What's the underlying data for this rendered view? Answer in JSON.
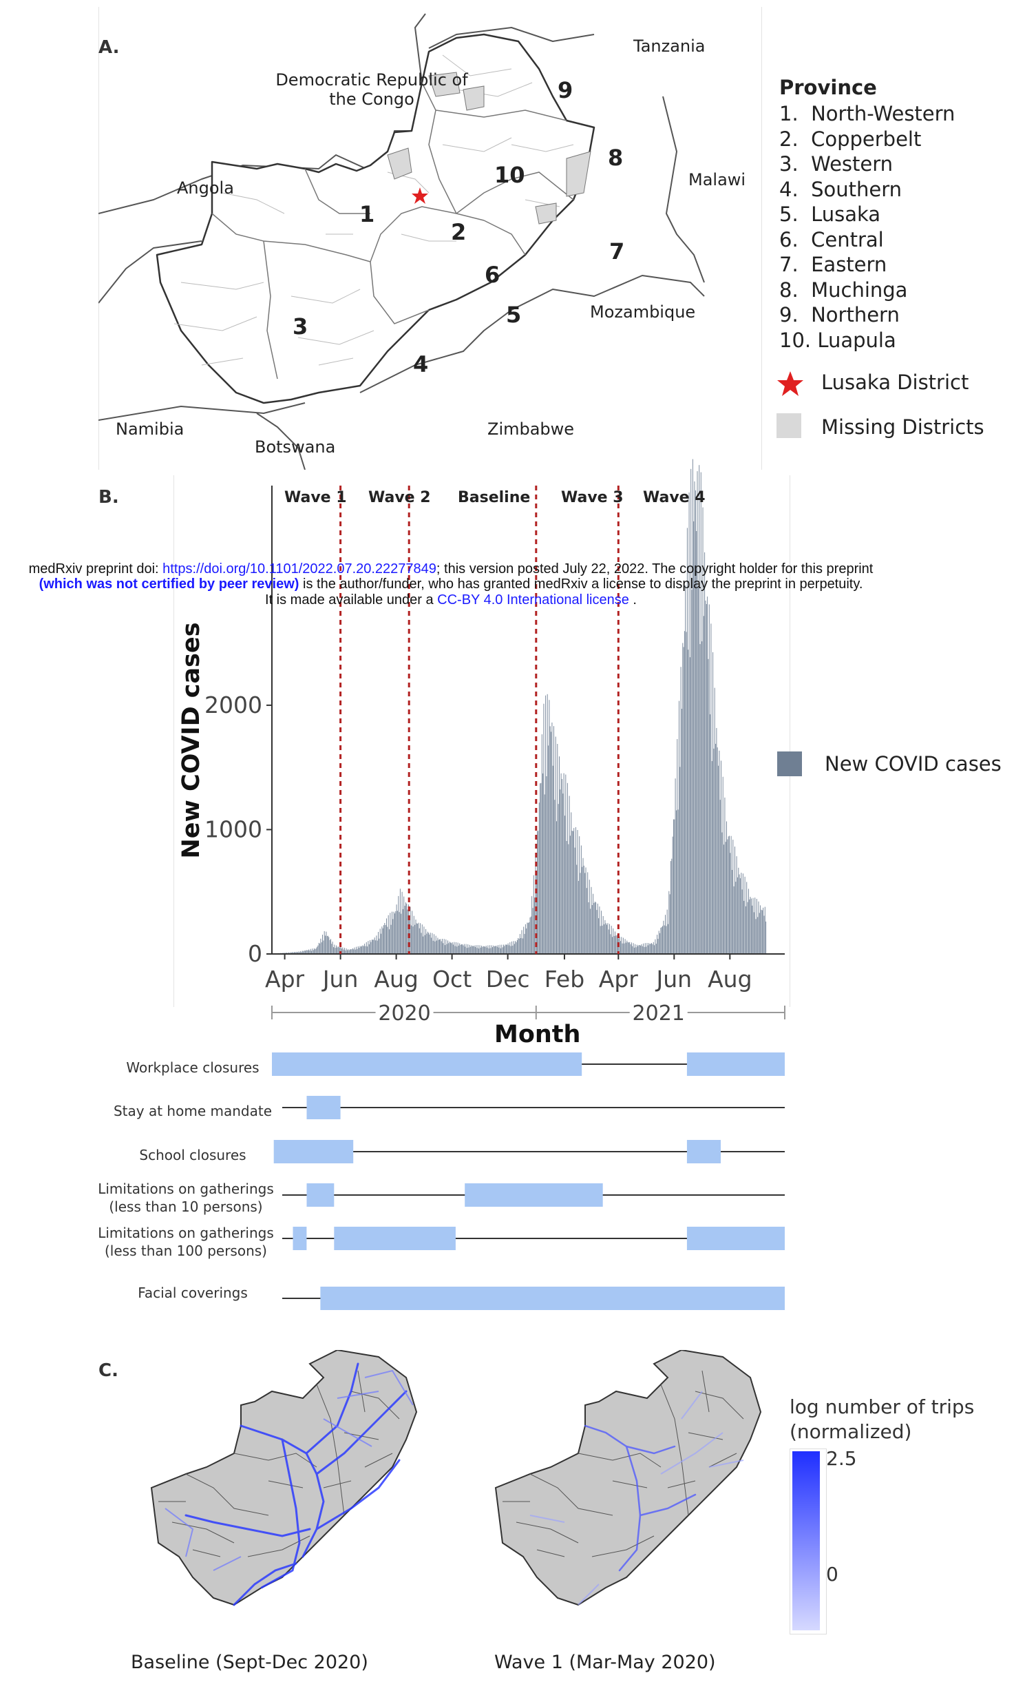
{
  "preprint_header": {
    "line1_prefix": "medRxiv preprint doi: ",
    "doi_link": "https://doi.org/10.1101/2022.07.20.22277849",
    "line1_suffix": "; this version posted July 22, 2022. The copyright holder for this preprint",
    "line2_bold": "(which was not certified by peer review)",
    "line2_rest": " is the author/funder, who has granted medRxiv a license to display the preprint in perpetuity.",
    "line3_prefix": "It is made available under a ",
    "license_link": "CC-BY 4.0 International license",
    "line3_suffix": " ."
  },
  "panel_a": {
    "letter": "A.",
    "countries": {
      "drc": "Democratic Republic of the Congo",
      "tanzania": "Tanzania",
      "angola": "Angola",
      "malawi": "Malawi",
      "mozambique": "Mozambique",
      "namibia": "Namibia",
      "botswana": "Botswana",
      "zimbabwe": "Zimbabwe"
    },
    "province_numbers": [
      "1",
      "2",
      "3",
      "4",
      "5",
      "6",
      "7",
      "8",
      "9",
      "10"
    ],
    "legend": {
      "title": "Province",
      "items": [
        "1.  North-Western",
        "2.  Copperbelt",
        "3.  Western",
        "4.  Southern",
        "5.  Lusaka",
        "6.  Central",
        "7.  Eastern",
        "8.  Muchinga",
        "9.  Northern",
        "10. Luapula"
      ],
      "lusaka_district": "Lusaka District",
      "missing_districts": "Missing Districts"
    },
    "colors": {
      "missing": "#d9d9d9",
      "star": "#e02020",
      "border": "#555555"
    }
  },
  "panel_b": {
    "letter": "B.",
    "wave_labels": [
      "Wave 1",
      "Wave 2",
      "Baseline",
      "Wave 3",
      "Wave 4"
    ],
    "y_axis_title": "New COVID cases",
    "x_axis_title": "Month",
    "year_labels": [
      "2020",
      "2021"
    ],
    "legend_label": "New COVID cases",
    "bar_color": "#6f7f93",
    "divider_color": "#b22222"
  },
  "chart_data": {
    "type": "bar",
    "title": "",
    "xlabel": "Month",
    "ylabel": "New COVID cases",
    "ylim": [
      0,
      3600
    ],
    "y_ticks": [
      0,
      1000,
      2000
    ],
    "x_ticks": [
      "Apr",
      "Jun",
      "Aug",
      "Oct",
      "Dec",
      "Feb",
      "Apr",
      "Jun",
      "Aug"
    ],
    "x_range": [
      "2020-03-18",
      "2021-09-30"
    ],
    "wave_boundaries": [
      "2020-06-01",
      "2020-08-15",
      "2021-01-01",
      "2021-04-01"
    ],
    "grid": false,
    "legend_position": "right",
    "series": [
      {
        "name": "New COVID cases",
        "points": [
          [
            "2020-03-25",
            5
          ],
          [
            "2020-04-15",
            15
          ],
          [
            "2020-05-05",
            40
          ],
          [
            "2020-05-15",
            160
          ],
          [
            "2020-05-25",
            60
          ],
          [
            "2020-06-10",
            30
          ],
          [
            "2020-06-25",
            60
          ],
          [
            "2020-07-10",
            120
          ],
          [
            "2020-07-20",
            230
          ],
          [
            "2020-07-30",
            300
          ],
          [
            "2020-08-05",
            420
          ],
          [
            "2020-08-12",
            360
          ],
          [
            "2020-08-20",
            250
          ],
          [
            "2020-09-01",
            170
          ],
          [
            "2020-09-15",
            110
          ],
          [
            "2020-10-01",
            80
          ],
          [
            "2020-10-20",
            60
          ],
          [
            "2020-11-05",
            55
          ],
          [
            "2020-11-25",
            60
          ],
          [
            "2020-12-10",
            90
          ],
          [
            "2020-12-25",
            250
          ],
          [
            "2021-01-01",
            700
          ],
          [
            "2021-01-08",
            1600
          ],
          [
            "2021-01-15",
            1750
          ],
          [
            "2021-01-22",
            1400
          ],
          [
            "2021-02-01",
            1200
          ],
          [
            "2021-02-10",
            900
          ],
          [
            "2021-02-20",
            700
          ],
          [
            "2021-03-01",
            450
          ],
          [
            "2021-03-15",
            250
          ],
          [
            "2021-04-01",
            120
          ],
          [
            "2021-04-20",
            60
          ],
          [
            "2021-05-10",
            80
          ],
          [
            "2021-05-25",
            300
          ],
          [
            "2021-06-05",
            1500
          ],
          [
            "2021-06-15",
            2800
          ],
          [
            "2021-06-22",
            3400
          ],
          [
            "2021-06-30",
            3100
          ],
          [
            "2021-07-08",
            2400
          ],
          [
            "2021-07-18",
            1500
          ],
          [
            "2021-07-28",
            900
          ],
          [
            "2021-08-10",
            600
          ],
          [
            "2021-08-25",
            380
          ],
          [
            "2021-09-10",
            300
          ]
        ]
      }
    ]
  },
  "policies": {
    "bar_color": "#a7c7f4",
    "items": [
      {
        "label": "Workplace closures",
        "periods": [
          [
            "2020-03-18",
            "2021-02-20"
          ],
          [
            "2021-06-15",
            "2021-09-30"
          ]
        ]
      },
      {
        "label": "Stay at home mandate",
        "periods": [
          [
            "2020-04-25",
            "2020-06-01"
          ]
        ]
      },
      {
        "label": "School closures",
        "periods": [
          [
            "2020-03-20",
            "2020-06-15"
          ],
          [
            "2021-06-15",
            "2021-07-22"
          ]
        ]
      },
      {
        "label": "Limitations on gatherings\n(less than 10 persons)",
        "periods": [
          [
            "2020-04-25",
            "2020-05-25"
          ],
          [
            "2020-10-15",
            "2021-03-15"
          ]
        ]
      },
      {
        "label": "Limitations on gatherings\n(less than 100 persons)",
        "periods": [
          [
            "2020-04-10",
            "2020-04-25"
          ],
          [
            "2020-05-25",
            "2020-10-05"
          ],
          [
            "2021-06-15",
            "2021-09-30"
          ]
        ]
      },
      {
        "label": "Facial coverings",
        "periods": [
          [
            "2020-05-10",
            "2021-09-30"
          ]
        ]
      }
    ]
  },
  "panel_c": {
    "letter": "C.",
    "map_captions": [
      "Baseline (Sept-Dec 2020)",
      "Wave 1 (Mar-May 2020)"
    ],
    "gradient_title": "log number of trips\n(normalized)",
    "gradient_max": "2.5",
    "gradient_min": "0",
    "colors": {
      "land": "#c8c8c8",
      "trip_high": "#1f2fff",
      "trip_low": "#d6d9ff"
    }
  }
}
